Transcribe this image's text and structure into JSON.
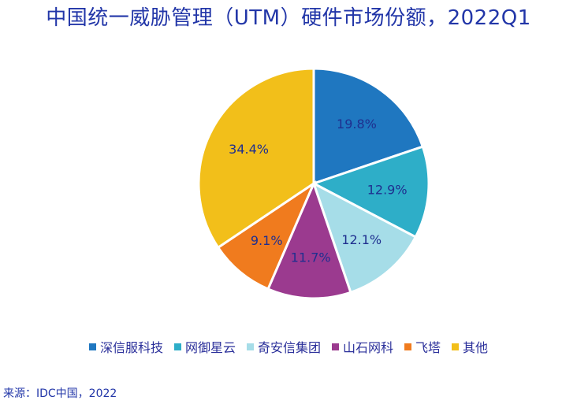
{
  "page": {
    "title": "中国统一威胁管理（UTM）硬件市场份额，2022Q1",
    "source": "来源：IDC中国，2022"
  },
  "chart_data": {
    "type": "pie",
    "title": "中国统一威胁管理（UTM）硬件市场份额，2022Q1",
    "unit": "%",
    "slices": [
      {
        "label": "深信服科技",
        "value": 19.8,
        "display": "19.8%",
        "color": "#1f77c0"
      },
      {
        "label": "网御星云",
        "value": 12.9,
        "display": "12.9%",
        "color": "#2eaec8"
      },
      {
        "label": "奇安信集团",
        "value": 12.1,
        "display": "12.1%",
        "color": "#a6dde8"
      },
      {
        "label": "山石网科",
        "value": 11.7,
        "display": "11.7%",
        "color": "#9b3a8f"
      },
      {
        "label": "飞塔",
        "value": 9.1,
        "display": "9.1%",
        "color": "#f07b1e"
      },
      {
        "label": "其他",
        "value": 34.4,
        "display": "34.4%",
        "color": "#f2bf1a"
      }
    ],
    "legend": {
      "position": "bottom"
    }
  }
}
